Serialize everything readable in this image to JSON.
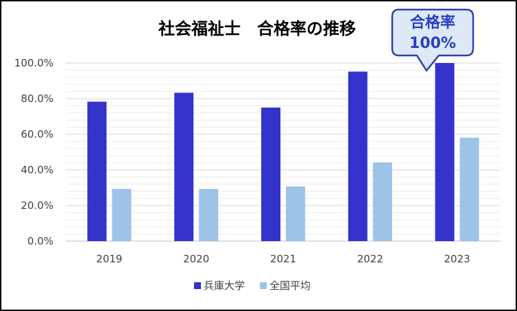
{
  "chart_data": {
    "type": "bar",
    "title": "社会福祉士　合格率の推移",
    "categories": [
      "2019",
      "2020",
      "2021",
      "2022",
      "2023"
    ],
    "series": [
      {
        "name": "兵庫大学",
        "color": "#3333cc",
        "values": [
          78.3,
          83.3,
          75.0,
          95.2,
          100.0
        ]
      },
      {
        "name": "全国平均",
        "color": "#9dc3e6",
        "values": [
          29.3,
          29.3,
          30.7,
          44.2,
          58.1
        ]
      }
    ],
    "ylim": [
      0,
      100
    ],
    "y_ticks": [
      "0.0%",
      "20.0%",
      "40.0%",
      "60.0%",
      "80.0%",
      "100.0%"
    ],
    "grid": true,
    "legend_position": "bottom",
    "annotation": {
      "line1": "合格率",
      "line2": "100%"
    }
  }
}
